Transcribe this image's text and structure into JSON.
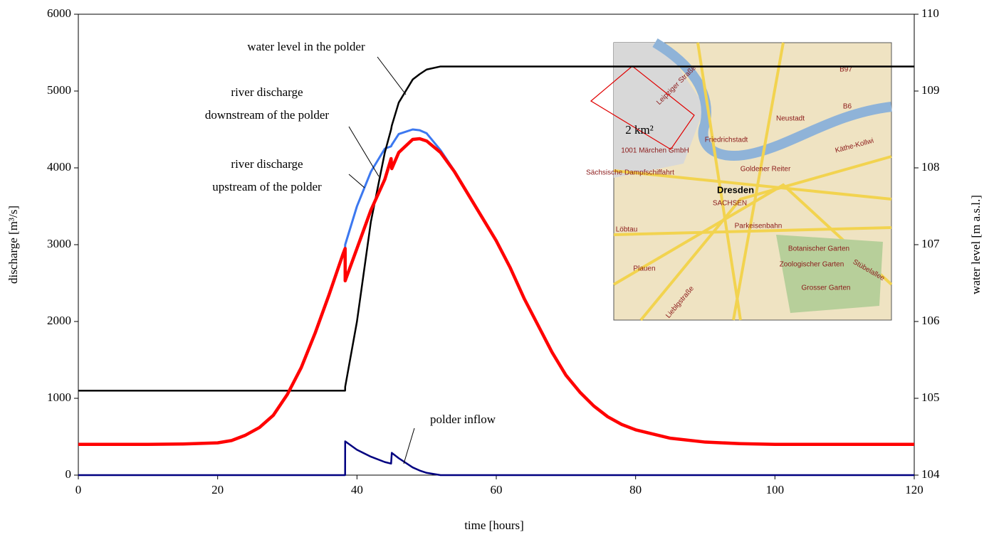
{
  "chart_data": {
    "type": "line",
    "x_label": "time [hours]",
    "y_label": "discharge [m³/s]",
    "y2_label": "water level [m a.s.l.]",
    "x": [
      0,
      5,
      10,
      15,
      20,
      22,
      24,
      26,
      28,
      30,
      32,
      34,
      36,
      38,
      38.3,
      38.31,
      40,
      42,
      44,
      44.9,
      45,
      46,
      48,
      49,
      50,
      52,
      54,
      56,
      58,
      60,
      62,
      64,
      66,
      68,
      70,
      72,
      74,
      76,
      78,
      80,
      85,
      90,
      95,
      100,
      110,
      120
    ],
    "xlim": [
      0,
      120
    ],
    "xticks": [
      0,
      20,
      40,
      60,
      80,
      100,
      120
    ],
    "ylim": [
      0,
      6000
    ],
    "yticks": [
      0,
      1000,
      2000,
      3000,
      4000,
      5000,
      6000
    ],
    "y2lim": [
      104,
      110
    ],
    "y2ticks": [
      104,
      105,
      106,
      107,
      108,
      109,
      110
    ],
    "series": [
      {
        "color": "#3c78f0",
        "width": 3,
        "values": [
          400,
          400,
          400,
          405,
          420,
          450,
          520,
          620,
          780,
          1050,
          1400,
          1850,
          2350,
          2880,
          2950,
          3000,
          3500,
          3950,
          4250,
          4280,
          4300,
          4440,
          4500,
          4490,
          4450,
          4230,
          3960,
          3660,
          3350,
          3050,
          2700,
          2300,
          1950,
          1600,
          1300,
          1080,
          900,
          760,
          660,
          590,
          480,
          430,
          410,
          400,
          400,
          400
        ]
      },
      {
        "color": "#000000",
        "width": 2.5,
        "axis": "y2",
        "values": [
          105.1,
          105.1,
          105.1,
          105.1,
          105.1,
          105.1,
          105.1,
          105.1,
          105.1,
          105.1,
          105.1,
          105.1,
          105.1,
          105.1,
          105.1,
          105.15,
          106.0,
          107.3,
          108.2,
          108.5,
          108.55,
          108.85,
          109.15,
          109.22,
          109.28,
          109.32,
          109.32,
          109.32,
          109.32,
          109.32,
          109.32,
          109.32,
          109.32,
          109.32,
          109.32,
          109.32,
          109.32,
          109.32,
          109.32,
          109.32,
          109.32,
          109.32,
          109.32,
          109.32,
          109.32,
          109.32
        ]
      },
      {
        "color": "#ff0000",
        "width": 4.5,
        "values": [
          400,
          400,
          400,
          405,
          420,
          450,
          520,
          620,
          780,
          1050,
          1400,
          1850,
          2350,
          2880,
          2950,
          2530,
          2950,
          3450,
          3850,
          4120,
          3990,
          4200,
          4370,
          4380,
          4350,
          4200,
          3950,
          3650,
          3350,
          3050,
          2700,
          2300,
          1950,
          1600,
          1300,
          1080,
          900,
          760,
          660,
          590,
          480,
          430,
          410,
          400,
          400,
          400
        ]
      },
      {
        "color": "#000080",
        "width": 2.5,
        "values": [
          0,
          0,
          0,
          0,
          0,
          0,
          0,
          0,
          0,
          0,
          0,
          0,
          0,
          0,
          0,
          440,
          330,
          240,
          170,
          150,
          290,
          220,
          100,
          60,
          30,
          0,
          0,
          0,
          0,
          0,
          0,
          0,
          0,
          0,
          0,
          0,
          0,
          0,
          0,
          0,
          0,
          0,
          0,
          0,
          0,
          0
        ]
      }
    ],
    "annotations": [
      {
        "lines": [
          "water level in the polder"
        ]
      },
      {
        "lines": [
          "river discharge",
          "downstream of the polder"
        ]
      },
      {
        "lines": [
          "river discharge",
          "upstream of the polder"
        ]
      },
      {
        "lines": [
          "polder inflow"
        ]
      }
    ],
    "inset_label": "2 km²",
    "map_labels": [
      "Leipziger Straße",
      "B97",
      "B6",
      "Neustadt",
      "Friedrichstadt",
      "1001 Märchen GmbH",
      "Käthe-Kollwi",
      "Goldener Reiter",
      "Sächsische Dampfschiffahrt",
      "Dresden",
      "SACHSEN",
      "Löbtau",
      "Parkeisenbahn",
      "Botanischer Garten",
      "Zoologischer Garten",
      "Grosser Garten",
      "Plauen",
      "Lieblgstraße",
      "Stübelallee"
    ]
  }
}
